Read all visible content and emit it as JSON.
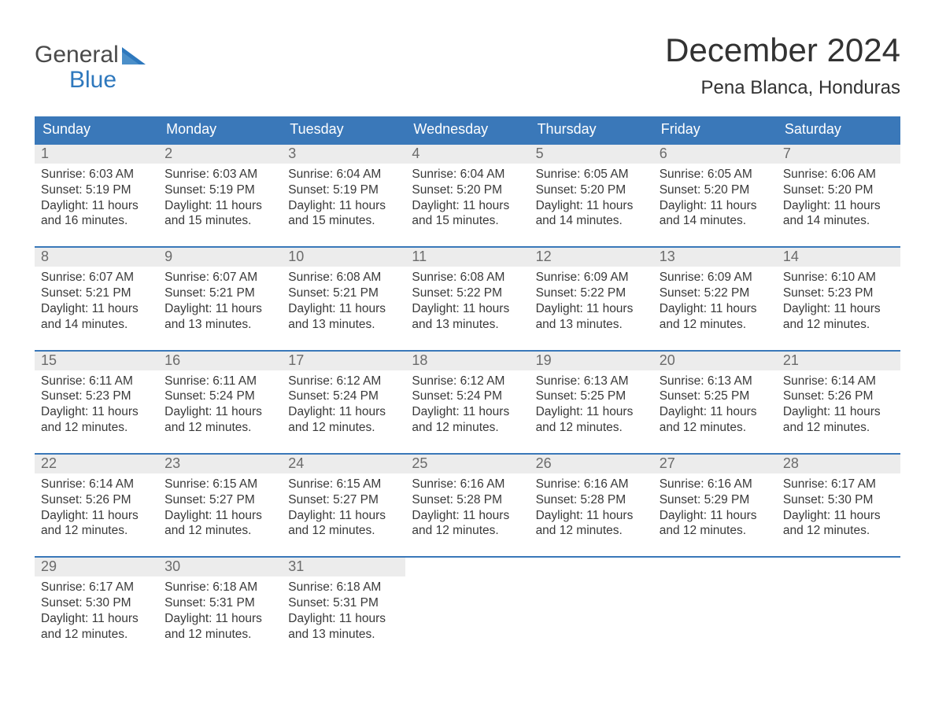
{
  "logo": {
    "line1": "General",
    "line2": "Blue",
    "color_gray": "#4a4a4a",
    "color_blue": "#2e78bd"
  },
  "title": "December 2024",
  "location": "Pena Blanca, Honduras",
  "colors": {
    "header_bg": "#3a78b9",
    "header_text": "#ffffff",
    "daynum_bg": "#ececec",
    "daynum_text": "#6b6b6b",
    "body_text": "#393939",
    "week_border": "#3a78b9",
    "page_bg": "#ffffff"
  },
  "fonts": {
    "title_size": 42,
    "location_size": 24,
    "weekday_size": 18,
    "daynum_size": 18,
    "body_size": 15.5
  },
  "weekdays": [
    "Sunday",
    "Monday",
    "Tuesday",
    "Wednesday",
    "Thursday",
    "Friday",
    "Saturday"
  ],
  "weeks": [
    [
      {
        "n": "1",
        "sunrise": "Sunrise: 6:03 AM",
        "sunset": "Sunset: 5:19 PM",
        "daylight": "Daylight: 11 hours and 16 minutes."
      },
      {
        "n": "2",
        "sunrise": "Sunrise: 6:03 AM",
        "sunset": "Sunset: 5:19 PM",
        "daylight": "Daylight: 11 hours and 15 minutes."
      },
      {
        "n": "3",
        "sunrise": "Sunrise: 6:04 AM",
        "sunset": "Sunset: 5:19 PM",
        "daylight": "Daylight: 11 hours and 15 minutes."
      },
      {
        "n": "4",
        "sunrise": "Sunrise: 6:04 AM",
        "sunset": "Sunset: 5:20 PM",
        "daylight": "Daylight: 11 hours and 15 minutes."
      },
      {
        "n": "5",
        "sunrise": "Sunrise: 6:05 AM",
        "sunset": "Sunset: 5:20 PM",
        "daylight": "Daylight: 11 hours and 14 minutes."
      },
      {
        "n": "6",
        "sunrise": "Sunrise: 6:05 AM",
        "sunset": "Sunset: 5:20 PM",
        "daylight": "Daylight: 11 hours and 14 minutes."
      },
      {
        "n": "7",
        "sunrise": "Sunrise: 6:06 AM",
        "sunset": "Sunset: 5:20 PM",
        "daylight": "Daylight: 11 hours and 14 minutes."
      }
    ],
    [
      {
        "n": "8",
        "sunrise": "Sunrise: 6:07 AM",
        "sunset": "Sunset: 5:21 PM",
        "daylight": "Daylight: 11 hours and 14 minutes."
      },
      {
        "n": "9",
        "sunrise": "Sunrise: 6:07 AM",
        "sunset": "Sunset: 5:21 PM",
        "daylight": "Daylight: 11 hours and 13 minutes."
      },
      {
        "n": "10",
        "sunrise": "Sunrise: 6:08 AM",
        "sunset": "Sunset: 5:21 PM",
        "daylight": "Daylight: 11 hours and 13 minutes."
      },
      {
        "n": "11",
        "sunrise": "Sunrise: 6:08 AM",
        "sunset": "Sunset: 5:22 PM",
        "daylight": "Daylight: 11 hours and 13 minutes."
      },
      {
        "n": "12",
        "sunrise": "Sunrise: 6:09 AM",
        "sunset": "Sunset: 5:22 PM",
        "daylight": "Daylight: 11 hours and 13 minutes."
      },
      {
        "n": "13",
        "sunrise": "Sunrise: 6:09 AM",
        "sunset": "Sunset: 5:22 PM",
        "daylight": "Daylight: 11 hours and 12 minutes."
      },
      {
        "n": "14",
        "sunrise": "Sunrise: 6:10 AM",
        "sunset": "Sunset: 5:23 PM",
        "daylight": "Daylight: 11 hours and 12 minutes."
      }
    ],
    [
      {
        "n": "15",
        "sunrise": "Sunrise: 6:11 AM",
        "sunset": "Sunset: 5:23 PM",
        "daylight": "Daylight: 11 hours and 12 minutes."
      },
      {
        "n": "16",
        "sunrise": "Sunrise: 6:11 AM",
        "sunset": "Sunset: 5:24 PM",
        "daylight": "Daylight: 11 hours and 12 minutes."
      },
      {
        "n": "17",
        "sunrise": "Sunrise: 6:12 AM",
        "sunset": "Sunset: 5:24 PM",
        "daylight": "Daylight: 11 hours and 12 minutes."
      },
      {
        "n": "18",
        "sunrise": "Sunrise: 6:12 AM",
        "sunset": "Sunset: 5:24 PM",
        "daylight": "Daylight: 11 hours and 12 minutes."
      },
      {
        "n": "19",
        "sunrise": "Sunrise: 6:13 AM",
        "sunset": "Sunset: 5:25 PM",
        "daylight": "Daylight: 11 hours and 12 minutes."
      },
      {
        "n": "20",
        "sunrise": "Sunrise: 6:13 AM",
        "sunset": "Sunset: 5:25 PM",
        "daylight": "Daylight: 11 hours and 12 minutes."
      },
      {
        "n": "21",
        "sunrise": "Sunrise: 6:14 AM",
        "sunset": "Sunset: 5:26 PM",
        "daylight": "Daylight: 11 hours and 12 minutes."
      }
    ],
    [
      {
        "n": "22",
        "sunrise": "Sunrise: 6:14 AM",
        "sunset": "Sunset: 5:26 PM",
        "daylight": "Daylight: 11 hours and 12 minutes."
      },
      {
        "n": "23",
        "sunrise": "Sunrise: 6:15 AM",
        "sunset": "Sunset: 5:27 PM",
        "daylight": "Daylight: 11 hours and 12 minutes."
      },
      {
        "n": "24",
        "sunrise": "Sunrise: 6:15 AM",
        "sunset": "Sunset: 5:27 PM",
        "daylight": "Daylight: 11 hours and 12 minutes."
      },
      {
        "n": "25",
        "sunrise": "Sunrise: 6:16 AM",
        "sunset": "Sunset: 5:28 PM",
        "daylight": "Daylight: 11 hours and 12 minutes."
      },
      {
        "n": "26",
        "sunrise": "Sunrise: 6:16 AM",
        "sunset": "Sunset: 5:28 PM",
        "daylight": "Daylight: 11 hours and 12 minutes."
      },
      {
        "n": "27",
        "sunrise": "Sunrise: 6:16 AM",
        "sunset": "Sunset: 5:29 PM",
        "daylight": "Daylight: 11 hours and 12 minutes."
      },
      {
        "n": "28",
        "sunrise": "Sunrise: 6:17 AM",
        "sunset": "Sunset: 5:30 PM",
        "daylight": "Daylight: 11 hours and 12 minutes."
      }
    ],
    [
      {
        "n": "29",
        "sunrise": "Sunrise: 6:17 AM",
        "sunset": "Sunset: 5:30 PM",
        "daylight": "Daylight: 11 hours and 12 minutes."
      },
      {
        "n": "30",
        "sunrise": "Sunrise: 6:18 AM",
        "sunset": "Sunset: 5:31 PM",
        "daylight": "Daylight: 11 hours and 12 minutes."
      },
      {
        "n": "31",
        "sunrise": "Sunrise: 6:18 AM",
        "sunset": "Sunset: 5:31 PM",
        "daylight": "Daylight: 11 hours and 13 minutes."
      },
      null,
      null,
      null,
      null
    ]
  ]
}
